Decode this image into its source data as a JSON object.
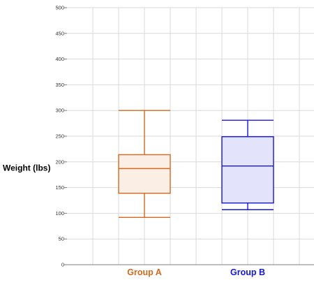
{
  "chart_data": {
    "type": "box",
    "ylabel": "Weight (lbs)",
    "xlabel": "",
    "ylim": [
      0,
      500
    ],
    "yticks": [
      0,
      50,
      100,
      150,
      200,
      250,
      300,
      350,
      400,
      450,
      500
    ],
    "ytick_labels": [
      "0",
      "50",
      "100",
      "150",
      "200",
      "250",
      "300",
      "350",
      "400",
      "450",
      "500"
    ],
    "grid": true,
    "categories": [
      "Group A",
      "Group B"
    ],
    "series": [
      {
        "name": "Group A",
        "min": 92,
        "q1": 139,
        "median": 187,
        "q3": 214,
        "max": 300,
        "stroke": "#D2691E",
        "fill": "#FAEEE5"
      },
      {
        "name": "Group B",
        "min": 107,
        "q1": 120,
        "median": 192,
        "q3": 249,
        "max": 281,
        "stroke": "#1515E0",
        "fill": "#E3E3FB"
      }
    ],
    "colors": {
      "grid": "#D9D9D9",
      "axis": "#7F7F7F"
    }
  }
}
